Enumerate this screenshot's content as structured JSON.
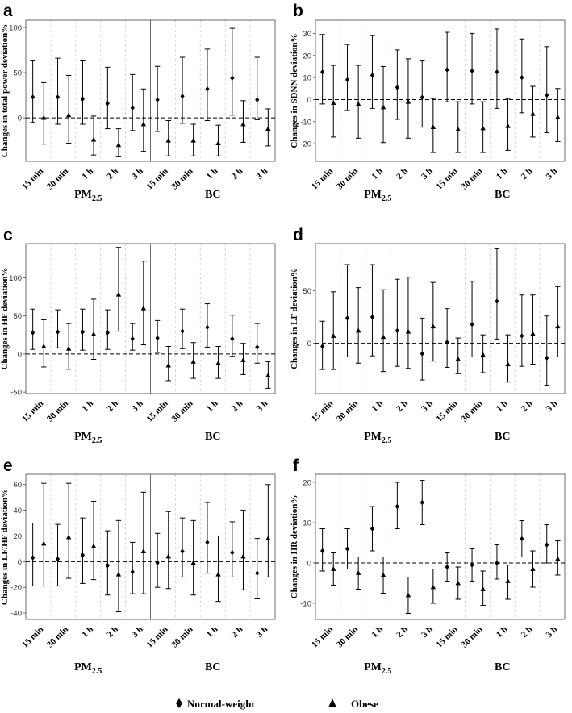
{
  "legend": {
    "items": [
      {
        "label": "Normal-weight",
        "marker": "diamond-icon"
      },
      {
        "label": "Obese",
        "marker": "triangle-icon"
      }
    ]
  },
  "chart_data": [
    {
      "panel": "a",
      "type": "errorbar",
      "ylabel": "Changes in total power deviation%",
      "ylim": [
        -48,
        108
      ],
      "yticks": [
        0,
        50,
        100
      ],
      "groups": [
        "PM2.5",
        "BC"
      ],
      "categories": [
        "15 min",
        "30 min",
        "1 h",
        "2 h",
        "3 h"
      ],
      "series": [
        {
          "name": "Normal-weight",
          "PM25": [
            [
              23,
              -5,
              63
            ],
            [
              23,
              -7,
              66
            ],
            [
              21,
              -7,
              63
            ],
            [
              16,
              -12,
              56
            ],
            [
              11,
              -14,
              48
            ]
          ],
          "BC": [
            [
              20,
              -15,
              57
            ],
            [
              24,
              -6,
              67
            ],
            [
              32,
              -3,
              76
            ],
            [
              44,
              3,
              99
            ],
            [
              20,
              -2,
              67
            ]
          ]
        },
        {
          "name": "Obese",
          "PM25": [
            [
              0,
              -29,
              39
            ],
            [
              3,
              -28,
              47
            ],
            [
              -24,
              -41,
              2
            ],
            [
              -30,
              -43,
              -12
            ],
            [
              -7,
              -37,
              32
            ]
          ],
          "BC": [
            [
              -25,
              -42,
              -3
            ],
            [
              -25,
              -42,
              -7
            ],
            [
              -28,
              -42,
              -8
            ],
            [
              -7,
              -27,
              19
            ],
            [
              -12,
              -31,
              10
            ]
          ]
        }
      ]
    },
    {
      "panel": "b",
      "type": "errorbar",
      "ylabel": "Changes in SDNN deviation%",
      "ylim": [
        -28,
        36
      ],
      "yticks": [
        -20,
        -10,
        0,
        10,
        20,
        30
      ],
      "groups": [
        "PM2.5",
        "BC"
      ],
      "categories": [
        "15 min",
        "30 min",
        "1 h",
        "2 h",
        "3 h"
      ],
      "series": [
        {
          "name": "Normal-weight",
          "PM25": [
            [
              12.5,
              -2,
              29.5
            ],
            [
              9,
              -5,
              25
            ],
            [
              11,
              -4,
              29
            ],
            [
              5.5,
              -9,
              22.5
            ],
            [
              1,
              -12.5,
              17.5
            ]
          ],
          "BC": [
            [
              13.5,
              -1,
              30.5
            ],
            [
              13,
              -2,
              30
            ],
            [
              12.5,
              -4,
              32
            ],
            [
              10,
              -6,
              27.5
            ],
            [
              2,
              -15,
              24
            ]
          ]
        },
        {
          "name": "Obese",
          "PM25": [
            [
              -1.5,
              -17,
              15.5
            ],
            [
              -2,
              -17.5,
              15.5
            ],
            [
              -3.5,
              -19.5,
              15
            ],
            [
              -1,
              -17.5,
              18.5
            ],
            [
              -12.5,
              -24,
              0.5
            ]
          ],
          "BC": [
            [
              -13.5,
              -24,
              -1
            ],
            [
              -13,
              -24,
              -1
            ],
            [
              -12,
              -23,
              0.5
            ],
            [
              -6.5,
              -17,
              6
            ],
            [
              -8,
              -19,
              5
            ]
          ]
        }
      ]
    },
    {
      "panel": "c",
      "type": "errorbar",
      "ylabel": "Changes in HF deviation%",
      "ylim": [
        -52,
        145
      ],
      "yticks": [
        -50,
        0,
        50,
        100
      ],
      "groups": [
        "PM2.5",
        "BC"
      ],
      "categories": [
        "15 min",
        "30 min",
        "1 h",
        "2 h",
        "3 h"
      ],
      "series": [
        {
          "name": "Normal-weight",
          "PM25": [
            [
              28,
              6,
              59
            ],
            [
              29,
              8,
              58
            ],
            [
              29,
              5,
              59
            ],
            [
              28,
              6,
              58
            ],
            [
              20,
              5,
              40
            ]
          ],
          "BC": [
            [
              21,
              2,
              44
            ],
            [
              30,
              7,
              59
            ],
            [
              35,
              9,
              66
            ],
            [
              20,
              -3,
              51
            ],
            [
              9,
              -12,
              40
            ]
          ]
        },
        {
          "name": "Obese",
          "PM25": [
            [
              10,
              -17,
              45
            ],
            [
              7,
              -20,
              40
            ],
            [
              26,
              -7,
              72
            ],
            [
              78,
              30,
              140
            ],
            [
              60,
              12,
              122
            ]
          ],
          "BC": [
            [
              -15,
              -35,
              10
            ],
            [
              -10,
              -32,
              15
            ],
            [
              -12,
              -32,
              10
            ],
            [
              -8,
              -27,
              14
            ],
            [
              -28,
              -45,
              -10
            ]
          ]
        }
      ]
    },
    {
      "panel": "d",
      "type": "errorbar",
      "ylabel": "Changes in LF deviation%",
      "ylim": [
        -48,
        95
      ],
      "yticks": [
        0,
        50
      ],
      "groups": [
        "PM2.5",
        "BC"
      ],
      "categories": [
        "15 min",
        "30 min",
        "1 h",
        "2 h",
        "3 h"
      ],
      "series": [
        {
          "name": "Normal-weight",
          "PM25": [
            [
              -3,
              -25,
              21
            ],
            [
              24,
              -13,
              75
            ],
            [
              25,
              -12,
              75
            ],
            [
              12,
              -22,
              61
            ],
            [
              -10,
              -35,
              24
            ]
          ],
          "BC": [
            [
              1,
              -23,
              33
            ],
            [
              18,
              -13,
              59
            ],
            [
              40,
              4,
              90
            ],
            [
              7,
              -22,
              46
            ],
            [
              -14,
              -40,
              26
            ]
          ]
        },
        {
          "name": "Obese",
          "PM25": [
            [
              7,
              -25,
              49
            ],
            [
              12,
              -19,
              53
            ],
            [
              6,
              -27,
              51
            ],
            [
              11,
              -24,
              63
            ],
            [
              16,
              -17,
              58
            ]
          ],
          "BC": [
            [
              -15,
              -29,
              5
            ],
            [
              -11,
              -28,
              8
            ],
            [
              -20,
              -37,
              8
            ],
            [
              9,
              -20,
              46
            ],
            [
              16,
              -13,
              54
            ]
          ]
        }
      ]
    },
    {
      "panel": "e",
      "type": "errorbar",
      "ylabel": "Changes in LF/HF deviation%",
      "ylim": [
        -45,
        68
      ],
      "yticks": [
        -40,
        -20,
        0,
        20,
        40,
        60
      ],
      "groups": [
        "PM2.5",
        "BC"
      ],
      "categories": [
        "15 min",
        "30 min",
        "1 h",
        "2 h",
        "3 h"
      ],
      "series": [
        {
          "name": "Normal-weight",
          "PM25": [
            [
              3,
              -19,
              30
            ],
            [
              2,
              -19,
              29
            ],
            [
              5,
              -17,
              34
            ],
            [
              -3,
              -26,
              24
            ],
            [
              -8,
              -25,
              15
            ]
          ],
          "BC": [
            [
              -1,
              -20,
              22
            ],
            [
              8,
              -12,
              34
            ],
            [
              15,
              -9,
              46
            ],
            [
              7,
              -12,
              31
            ],
            [
              -9,
              -29,
              18
            ]
          ]
        },
        {
          "name": "Obese",
          "PM25": [
            [
              14,
              -19,
              61
            ],
            [
              19,
              -13,
              61
            ],
            [
              12,
              -14,
              47
            ],
            [
              -10,
              -39,
              32
            ],
            [
              8,
              -25,
              54
            ]
          ],
          "BC": [
            [
              4,
              -21,
              39
            ],
            [
              -1,
              -26,
              32
            ],
            [
              -10,
              -31,
              20
            ],
            [
              4,
              -22,
              40
            ],
            [
              18,
              -12,
              60
            ]
          ]
        }
      ]
    },
    {
      "panel": "f",
      "type": "errorbar",
      "ylabel": "Changes in HR deviation%",
      "ylim": [
        -14,
        22
      ],
      "yticks": [
        -10,
        0,
        10,
        20
      ],
      "groups": [
        "PM2.5",
        "BC"
      ],
      "categories": [
        "15 min",
        "30 min",
        "1 h",
        "2 h",
        "3 h"
      ],
      "series": [
        {
          "name": "Normal-weight",
          "PM25": [
            [
              3,
              -2,
              8.5
            ],
            [
              3.5,
              -1.5,
              8.5
            ],
            [
              8.5,
              3,
              14
            ],
            [
              14,
              8.5,
              20
            ],
            [
              15,
              9.5,
              20.5
            ]
          ],
          "BC": [
            [
              -1,
              -4.5,
              2.5
            ],
            [
              -0.5,
              -4.5,
              3.5
            ],
            [
              0,
              -4,
              4.5
            ],
            [
              6,
              1.5,
              10.5
            ],
            [
              4.5,
              0,
              9.5
            ]
          ]
        },
        {
          "name": "Obese",
          "PM25": [
            [
              -1.5,
              -5.5,
              2.5
            ],
            [
              -2.5,
              -6.5,
              1.5
            ],
            [
              -3,
              -7.5,
              1.5
            ],
            [
              -8,
              -12.5,
              -3.5
            ],
            [
              -6,
              -10,
              -1.5
            ]
          ],
          "BC": [
            [
              -5,
              -9,
              -1
            ],
            [
              -6.5,
              -10.5,
              -2
            ],
            [
              -4.5,
              -9,
              -0.5
            ],
            [
              -1.5,
              -6,
              3
            ],
            [
              1,
              -3,
              5.5
            ]
          ]
        }
      ]
    }
  ]
}
